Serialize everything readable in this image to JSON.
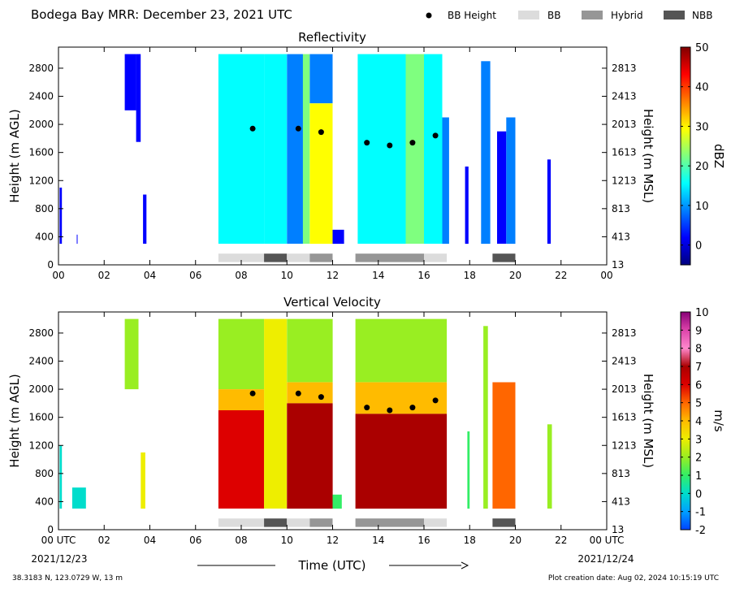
{
  "header": {
    "title": "Bodega Bay MRR:  December 23, 2021 UTC",
    "legend": [
      {
        "label": "BB Height",
        "kind": "dot",
        "color": "#000000"
      },
      {
        "label": "BB",
        "kind": "box",
        "color": "#dcdcdc"
      },
      {
        "label": "Hybrid",
        "kind": "box",
        "color": "#969696"
      },
      {
        "label": "NBB",
        "kind": "box",
        "color": "#555555"
      }
    ]
  },
  "footer": {
    "location": "38.3183 N, 123.0729 W, 13 m",
    "created": "Plot creation date: Aug 02, 2024 10:15:19 UTC",
    "xlabel": "Time (UTC)",
    "start_date": "2021/12/23",
    "end_date": "2021/12/24"
  },
  "chart_data": [
    {
      "type": "heatmap",
      "title": "Reflectivity",
      "ylabel": "Height (m AGL)",
      "ylabel_right": "Height (m MSL)",
      "cbar_label": "dBZ",
      "cbar_range": [
        -5,
        50
      ],
      "cbar_ticks": [
        "0",
        "10",
        "20",
        "30",
        "40",
        "50"
      ],
      "cbar_tick_values": [
        0,
        10,
        20,
        30,
        40,
        50
      ],
      "cbar_colors": [
        "#00007f",
        "#0000ff",
        "#007fff",
        "#00ffff",
        "#7fff7f",
        "#ffff00",
        "#ff7f00",
        "#ff0000",
        "#7f0000"
      ],
      "xlim": [
        0,
        24
      ],
      "ylim": [
        0,
        3100
      ],
      "xticks": [
        "00",
        "02",
        "04",
        "06",
        "08",
        "10",
        "12",
        "14",
        "16",
        "18",
        "20",
        "22",
        "00"
      ],
      "xtick_values": [
        0,
        2,
        4,
        6,
        8,
        10,
        12,
        14,
        16,
        18,
        20,
        22,
        24
      ],
      "yticks": [
        "0",
        "400",
        "800",
        "1200",
        "1600",
        "2000",
        "2400",
        "2800"
      ],
      "ytick_values": [
        0,
        400,
        800,
        1200,
        1600,
        2000,
        2400,
        2800
      ],
      "yticks_right": [
        "13",
        "413",
        "813",
        "1213",
        "1613",
        "2013",
        "2413",
        "2813"
      ],
      "bb_height": [
        {
          "x": 8.5,
          "y": 1940
        },
        {
          "x": 10.5,
          "y": 1940
        },
        {
          "x": 11.5,
          "y": 1890
        },
        {
          "x": 13.5,
          "y": 1740
        },
        {
          "x": 14.5,
          "y": 1700
        },
        {
          "x": 15.5,
          "y": 1740
        },
        {
          "x": 16.5,
          "y": 1840
        }
      ],
      "bb_class": [
        {
          "start": 7.0,
          "end": 9.0,
          "class": "BB"
        },
        {
          "start": 9.0,
          "end": 10.0,
          "class": "NBB"
        },
        {
          "start": 10.0,
          "end": 11.0,
          "class": "BB"
        },
        {
          "start": 11.0,
          "end": 12.0,
          "class": "Hybrid"
        },
        {
          "start": 13.0,
          "end": 16.0,
          "class": "Hybrid"
        },
        {
          "start": 16.0,
          "end": 17.0,
          "class": "BB"
        },
        {
          "start": 19.0,
          "end": 20.0,
          "class": "NBB"
        }
      ],
      "streaks": [
        {
          "t0": 0.05,
          "t1": 0.15,
          "h0": 300,
          "h1": 1100,
          "v": 3
        },
        {
          "t0": 0.8,
          "t1": 0.82,
          "h0": 300,
          "h1": 430,
          "v": 1
        },
        {
          "t0": 2.9,
          "t1": 3.4,
          "h0": 2200,
          "h1": 3000,
          "v": 4
        },
        {
          "t0": 3.4,
          "t1": 3.6,
          "h0": 1750,
          "h1": 3000,
          "v": 3
        },
        {
          "t0": 3.7,
          "t1": 3.85,
          "h0": 300,
          "h1": 1000,
          "v": 1
        },
        {
          "t0": 7.0,
          "t1": 7.5,
          "h0": 300,
          "h1": 3000,
          "v": 14
        },
        {
          "t0": 7.5,
          "t1": 9.0,
          "h0": 300,
          "h1": 3000,
          "v": 16
        },
        {
          "t0": 9.0,
          "t1": 10.0,
          "h0": 300,
          "h1": 3000,
          "v": 15
        },
        {
          "t0": 10.0,
          "t1": 10.7,
          "h0": 300,
          "h1": 3000,
          "v": 12
        },
        {
          "t0": 10.7,
          "t1": 11.0,
          "h0": 300,
          "h1": 3000,
          "v": 22
        },
        {
          "t0": 11.0,
          "t1": 12.0,
          "h0": 300,
          "h1": 2300,
          "v": 30
        },
        {
          "t0": 11.0,
          "t1": 12.0,
          "h0": 2300,
          "h1": 3000,
          "v": 12
        },
        {
          "t0": 12.0,
          "t1": 12.5,
          "h0": 300,
          "h1": 500,
          "v": 5
        },
        {
          "t0": 13.1,
          "t1": 14.4,
          "h0": 300,
          "h1": 3000,
          "v": 15
        },
        {
          "t0": 14.4,
          "t1": 15.2,
          "h0": 300,
          "h1": 3000,
          "v": 18
        },
        {
          "t0": 15.2,
          "t1": 16.0,
          "h0": 300,
          "h1": 3000,
          "v": 22
        },
        {
          "t0": 16.0,
          "t1": 16.8,
          "h0": 300,
          "h1": 3000,
          "v": 16
        },
        {
          "t0": 16.8,
          "t1": 17.1,
          "h0": 300,
          "h1": 2100,
          "v": 12
        },
        {
          "t0": 17.8,
          "t1": 17.95,
          "h0": 300,
          "h1": 1400,
          "v": 3
        },
        {
          "t0": 18.5,
          "t1": 18.9,
          "h0": 300,
          "h1": 2900,
          "v": 8
        },
        {
          "t0": 19.2,
          "t1": 19.6,
          "h0": 300,
          "h1": 1900,
          "v": 3
        },
        {
          "t0": 19.6,
          "t1": 20.0,
          "h0": 300,
          "h1": 2100,
          "v": 6
        },
        {
          "t0": 21.4,
          "t1": 21.55,
          "h0": 300,
          "h1": 1500,
          "v": 4
        }
      ]
    },
    {
      "type": "heatmap",
      "title": "Vertical Velocity",
      "ylabel": "Height (m AGL)",
      "ylabel_right": "Height (m MSL)",
      "cbar_label": "m/s",
      "cbar_range": [
        -2,
        10
      ],
      "cbar_ticks": [
        "-2",
        "-1",
        "0",
        "1",
        "2",
        "3",
        "4",
        "5",
        "6",
        "7",
        "8",
        "9",
        "10"
      ],
      "cbar_tick_values": [
        -2,
        -1,
        0,
        1,
        2,
        3,
        4,
        5,
        6,
        7,
        8,
        9,
        10
      ],
      "cbar_colors": [
        "#0044ff",
        "#00a0ff",
        "#00ddcc",
        "#33ee66",
        "#99ee22",
        "#eeee00",
        "#ffbb00",
        "#ff6600",
        "#dd0000",
        "#aa0000",
        "#ff88cc",
        "#dd44aa",
        "#880077"
      ],
      "xlim": [
        0,
        24
      ],
      "ylim": [
        0,
        3100
      ],
      "xticks": [
        "00 UTC",
        "02",
        "04",
        "06",
        "08",
        "10",
        "12",
        "14",
        "16",
        "18",
        "20",
        "22",
        "00 UTC"
      ],
      "xtick_values": [
        0,
        2,
        4,
        6,
        8,
        10,
        12,
        14,
        16,
        18,
        20,
        22,
        24
      ],
      "yticks": [
        "0",
        "400",
        "800",
        "1200",
        "1600",
        "2000",
        "2400",
        "2800"
      ],
      "ytick_values": [
        0,
        400,
        800,
        1200,
        1600,
        2000,
        2400,
        2800
      ],
      "yticks_right": [
        "13",
        "413",
        "813",
        "1213",
        "1613",
        "2013",
        "2413",
        "2813"
      ],
      "bb_height": [
        {
          "x": 8.5,
          "y": 1940
        },
        {
          "x": 10.5,
          "y": 1940
        },
        {
          "x": 11.5,
          "y": 1890
        },
        {
          "x": 13.5,
          "y": 1740
        },
        {
          "x": 14.5,
          "y": 1700
        },
        {
          "x": 15.5,
          "y": 1740
        },
        {
          "x": 16.5,
          "y": 1840
        }
      ],
      "bb_class": [
        {
          "start": 7.0,
          "end": 9.0,
          "class": "BB"
        },
        {
          "start": 9.0,
          "end": 10.0,
          "class": "NBB"
        },
        {
          "start": 10.0,
          "end": 11.0,
          "class": "BB"
        },
        {
          "start": 11.0,
          "end": 12.0,
          "class": "Hybrid"
        },
        {
          "start": 13.0,
          "end": 16.0,
          "class": "Hybrid"
        },
        {
          "start": 16.0,
          "end": 17.0,
          "class": "BB"
        },
        {
          "start": 19.0,
          "end": 20.0,
          "class": "NBB"
        }
      ],
      "streaks": [
        {
          "t0": 0.05,
          "t1": 0.15,
          "h0": 300,
          "h1": 1200,
          "v": 0
        },
        {
          "t0": 0.6,
          "t1": 1.2,
          "h0": 300,
          "h1": 600,
          "v": 0
        },
        {
          "t0": 2.9,
          "t1": 3.5,
          "h0": 2000,
          "h1": 3000,
          "v": 2
        },
        {
          "t0": 3.6,
          "t1": 3.8,
          "h0": 300,
          "h1": 1100,
          "v": 3
        },
        {
          "t0": 7.0,
          "t1": 9.0,
          "h0": 2000,
          "h1": 3000,
          "v": 2
        },
        {
          "t0": 7.0,
          "t1": 9.0,
          "h0": 1700,
          "h1": 2000,
          "v": 4
        },
        {
          "t0": 7.0,
          "t1": 9.0,
          "h0": 300,
          "h1": 1700,
          "v": 6
        },
        {
          "t0": 9.0,
          "t1": 10.0,
          "h0": 300,
          "h1": 3000,
          "v": 3
        },
        {
          "t0": 10.0,
          "t1": 12.0,
          "h0": 2100,
          "h1": 3000,
          "v": 2
        },
        {
          "t0": 10.0,
          "t1": 12.0,
          "h0": 1800,
          "h1": 2100,
          "v": 4
        },
        {
          "t0": 10.0,
          "t1": 12.0,
          "h0": 300,
          "h1": 1800,
          "v": 7
        },
        {
          "t0": 12.0,
          "t1": 12.4,
          "h0": 300,
          "h1": 500,
          "v": 1
        },
        {
          "t0": 13.0,
          "t1": 17.0,
          "h0": 2100,
          "h1": 3000,
          "v": 2
        },
        {
          "t0": 13.0,
          "t1": 17.0,
          "h0": 1650,
          "h1": 2100,
          "v": 4
        },
        {
          "t0": 13.0,
          "t1": 17.0,
          "h0": 300,
          "h1": 1650,
          "v": 7
        },
        {
          "t0": 17.9,
          "t1": 18.0,
          "h0": 300,
          "h1": 1400,
          "v": 1
        },
        {
          "t0": 18.6,
          "t1": 18.8,
          "h0": 300,
          "h1": 2900,
          "v": 2
        },
        {
          "t0": 19.0,
          "t1": 20.0,
          "h0": 300,
          "h1": 2100,
          "v": 5
        },
        {
          "t0": 21.4,
          "t1": 21.6,
          "h0": 300,
          "h1": 1500,
          "v": 2
        }
      ]
    }
  ]
}
